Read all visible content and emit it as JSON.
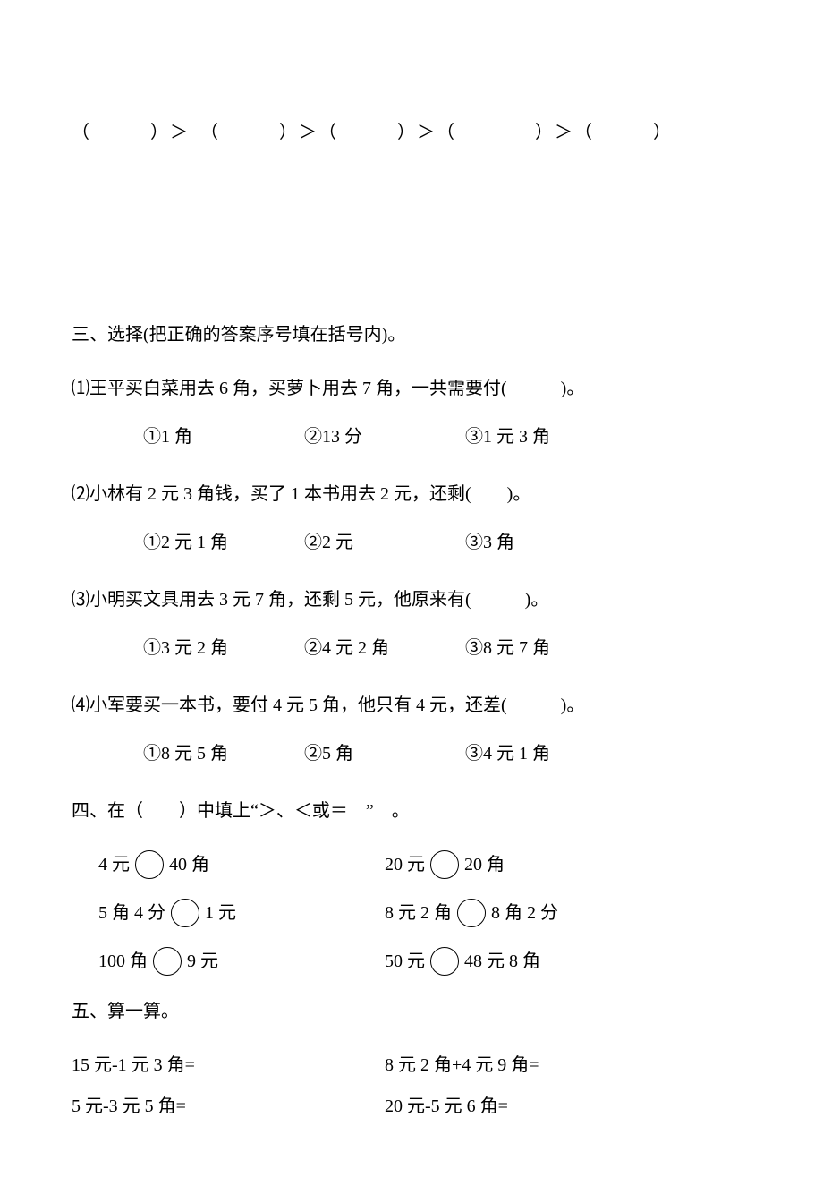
{
  "ordering_line": "（　　　）＞　（　　　）＞（　　　）＞（　　　　）＞（　　　）",
  "section3": {
    "title": "三、选择(把正确的答案序号填在括号内)。",
    "q1": {
      "stem": "⑴王平买白菜用去 6 角，买萝卜用去 7 角，一共需要付(　　　)。",
      "opts": [
        "①1 角",
        "②13 分",
        "③1 元 3 角"
      ]
    },
    "q2": {
      "stem": "⑵小林有 2 元 3 角钱，买了 1 本书用去 2 元，还剩(　　)。",
      "opts": [
        "①2 元 1 角",
        "②2 元",
        "③3 角"
      ]
    },
    "q3": {
      "stem": "⑶小明买文具用去 3 元 7 角，还剩 5 元，他原来有(　　　)。",
      "opts": [
        "①3 元 2 角",
        "②4 元 2 角",
        "③8 元 7 角"
      ]
    },
    "q4": {
      "stem": "⑷小军要买一本书，要付 4 元 5 角，他只有 4 元，还差(　　　)。",
      "opts": [
        "①8 元 5 角",
        "②5 角",
        "③4 元 1 角"
      ]
    }
  },
  "section4": {
    "title": "四、在（　　）中填上“＞、＜或＝　”　。",
    "rows": [
      {
        "a_left": "4 元",
        "a_right": "40 角",
        "b_left": "20 元",
        "b_right": "20 角"
      },
      {
        "a_left": "5 角 4 分",
        "a_right": "1 元",
        "b_left": "8 元 2 角",
        "b_right": "8 角 2 分"
      },
      {
        "a_left": "100 角",
        "a_right": "9 元",
        "b_left": "50 元",
        "b_right": "48 元 8 角"
      }
    ]
  },
  "section5": {
    "title": "五、算一算。",
    "left": [
      "15 元-1 元 3 角=",
      "5 元-3 元 5 角="
    ],
    "right": [
      "8 元 2 角+4 元 9 角=",
      "20 元-5 元 6 角="
    ]
  }
}
